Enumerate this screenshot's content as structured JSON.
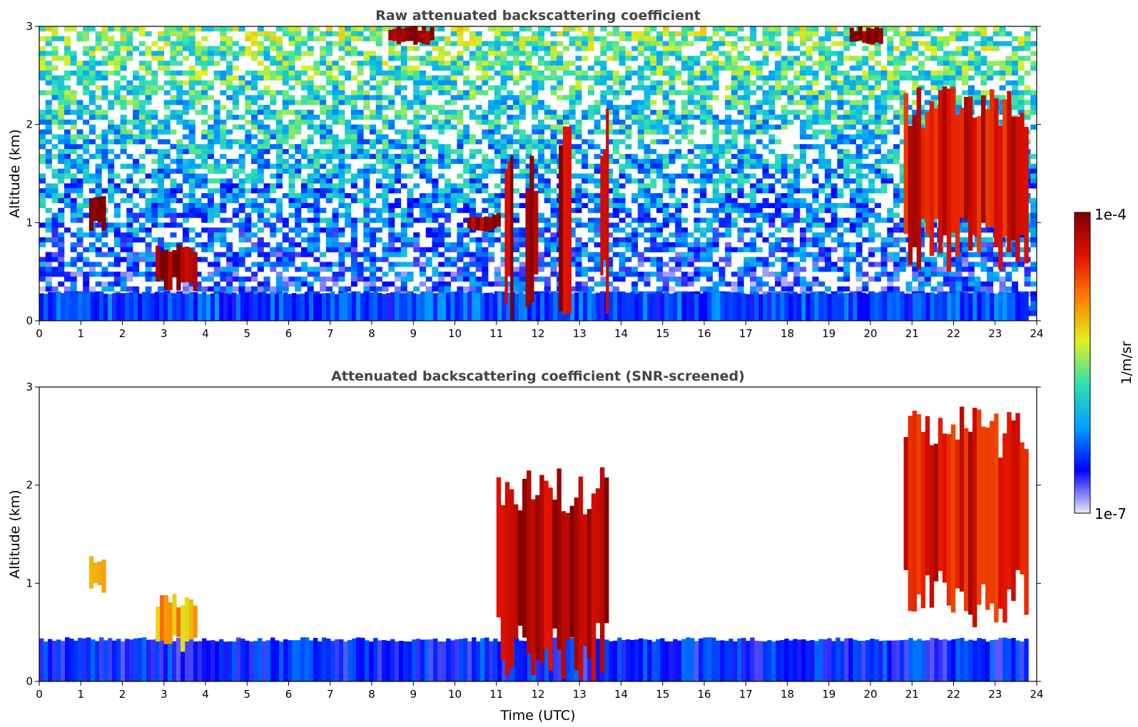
{
  "chart_data": [
    {
      "type": "heatmap",
      "title": "Raw attenuated backscattering coefficient",
      "xlabel": "",
      "ylabel": "Altitude (km)",
      "xlim": [
        0,
        24
      ],
      "ylim": [
        0,
        3
      ],
      "xticks": [
        "0",
        "1",
        "2",
        "3",
        "4",
        "5",
        "6",
        "7",
        "8",
        "9",
        "10",
        "11",
        "12",
        "13",
        "14",
        "15",
        "16",
        "17",
        "18",
        "19",
        "20",
        "21",
        "22",
        "23",
        "24"
      ],
      "yticks": [
        "0",
        "1",
        "2",
        "3"
      ],
      "screened": false,
      "features": [
        {
          "kind": "boundary_layer",
          "t0": 0,
          "t1": 23.8,
          "z0": 0,
          "z1": 0.3,
          "value": -6.4
        },
        {
          "kind": "cloud",
          "t0": 20.8,
          "t1": 23.8,
          "z0": 0.5,
          "z1": 2.4,
          "value": -4.4
        },
        {
          "kind": "cloud",
          "t0": 1.2,
          "t1": 1.6,
          "z0": 0.9,
          "z1": 1.3,
          "value": -4.0
        },
        {
          "kind": "cloud",
          "t0": 2.8,
          "t1": 3.8,
          "z0": 0.3,
          "z1": 0.8,
          "value": -4.1
        },
        {
          "kind": "cloud",
          "t0": 10.3,
          "t1": 11.1,
          "z0": 0.9,
          "z1": 1.1,
          "value": -4.1
        },
        {
          "kind": "cloud",
          "t0": 11.2,
          "t1": 11.4,
          "z0": 0,
          "z1": 2.0,
          "value": -4.2
        },
        {
          "kind": "cloud",
          "t0": 11.7,
          "t1": 12.0,
          "z0": 0.1,
          "z1": 1.7,
          "value": -4.3
        },
        {
          "kind": "cloud",
          "t0": 12.5,
          "t1": 12.8,
          "z0": 0,
          "z1": 2.1,
          "value": -4.2
        },
        {
          "kind": "cloud",
          "t0": 13.5,
          "t1": 13.7,
          "z0": 0,
          "z1": 2.2,
          "value": -4.2
        },
        {
          "kind": "cloud",
          "t0": 8.4,
          "t1": 9.5,
          "z0": 2.8,
          "z1": 3.0,
          "value": -4.0
        },
        {
          "kind": "cloud",
          "t0": 19.5,
          "t1": 20.3,
          "z0": 2.8,
          "z1": 3.0,
          "value": -4.0
        }
      ]
    },
    {
      "type": "heatmap",
      "title": "Attenuated backscattering coefficient (SNR-screened)",
      "xlabel": "Time (UTC)",
      "ylabel": "Altitude (km)",
      "xlim": [
        0,
        24
      ],
      "ylim": [
        0,
        3
      ],
      "xticks": [
        "0",
        "1",
        "2",
        "3",
        "4",
        "5",
        "6",
        "7",
        "8",
        "9",
        "10",
        "11",
        "12",
        "13",
        "14",
        "15",
        "16",
        "17",
        "18",
        "19",
        "20",
        "21",
        "22",
        "23",
        "24"
      ],
      "yticks": [
        "0",
        "1",
        "2",
        "3"
      ],
      "screened": true,
      "features": [
        {
          "kind": "boundary_layer",
          "t0": 0,
          "t1": 23.8,
          "z0": 0,
          "z1": 0.45,
          "value": -6.5
        },
        {
          "kind": "cloud",
          "t0": 20.8,
          "t1": 23.8,
          "z0": 0.5,
          "z1": 2.8,
          "value": -4.4
        },
        {
          "kind": "cloud",
          "t0": 11.0,
          "t1": 13.7,
          "z0": 0,
          "z1": 2.2,
          "value": -4.2
        },
        {
          "kind": "cloud",
          "t0": 1.2,
          "t1": 1.6,
          "z0": 0.9,
          "z1": 1.3,
          "value": -5.0
        },
        {
          "kind": "cloud",
          "t0": 2.8,
          "t1": 3.8,
          "z0": 0.3,
          "z1": 0.9,
          "value": -5.0
        }
      ]
    }
  ],
  "colorbar": {
    "label": "1/m/sr",
    "max_label": "1e-4",
    "min_label": "1e-7",
    "log_min": -7,
    "log_max": -4,
    "colors": [
      "#e8e8f8",
      "#0000ff",
      "#00a0ff",
      "#30e0b0",
      "#e0f020",
      "#ff8000",
      "#e01000",
      "#800000"
    ]
  }
}
